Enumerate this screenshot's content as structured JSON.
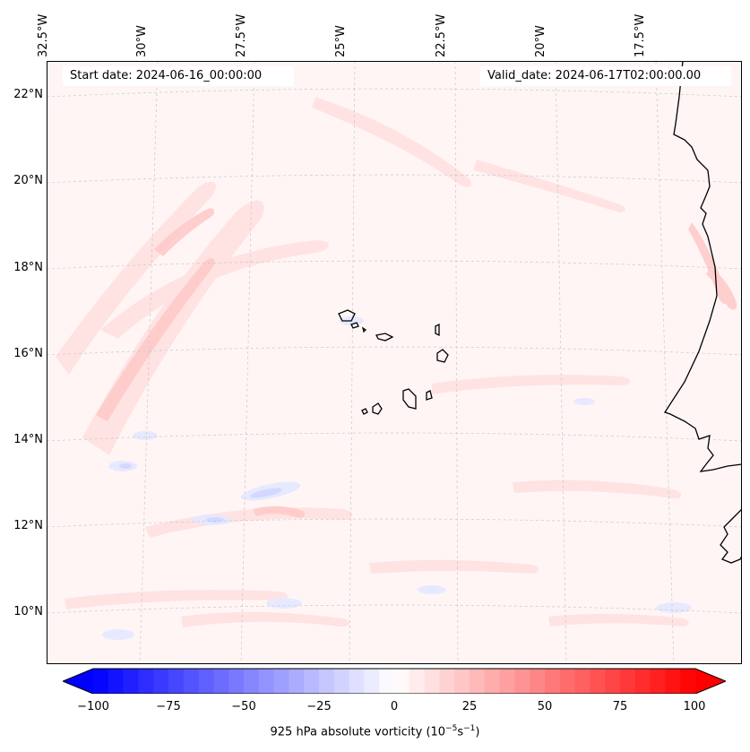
{
  "map": {
    "region": "Eastern Atlantic near Cabo Verde and West Africa",
    "header": {
      "start_label": "Start date: 2024-06-16_00:00:00",
      "valid_label": "Valid_date: 2024-06-17T02:00:00.00"
    },
    "lon_labels": [
      "32.5°W",
      "30°W",
      "27.5°W",
      "25°W",
      "22.5°W",
      "20°W",
      "17.5°W"
    ],
    "lat_labels": [
      "22°N",
      "20°N",
      "18°N",
      "16°N",
      "14°N",
      "12°N",
      "10°N"
    ],
    "colors": {
      "frame": "#000000",
      "coast": "#000000",
      "grid": "#c8c8c8",
      "pos": "#ff0000",
      "neg": "#0000ff"
    }
  },
  "colorbar": {
    "ticks": [
      "−100",
      "−75",
      "−50",
      "−25",
      "0",
      "25",
      "50",
      "75",
      "100"
    ],
    "label": "925 hPa absolute vorticity (10",
    "label_exp1": "−5",
    "label_mid": "s",
    "label_exp2": "−1",
    "label_end": ")",
    "min": -100,
    "max": 100,
    "step": 5
  }
}
